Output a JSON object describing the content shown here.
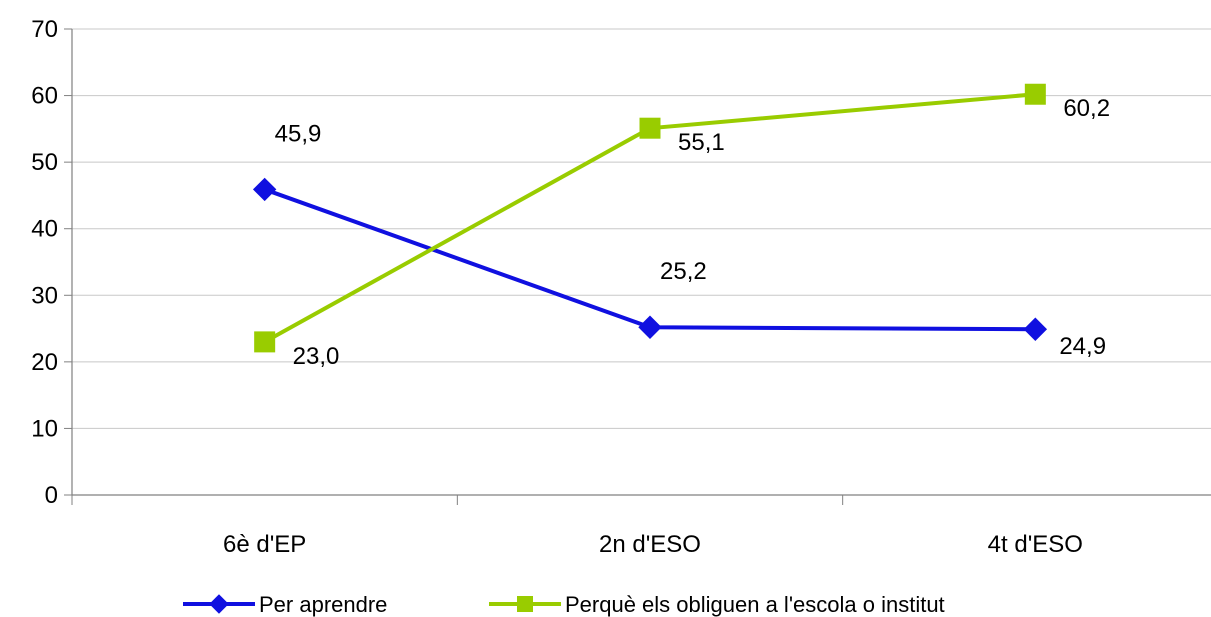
{
  "chart_data": {
    "type": "line",
    "title": "",
    "xlabel": "",
    "ylabel": "",
    "categories": [
      "6è d'EP",
      "2n d'ESO",
      "4t d'ESO"
    ],
    "ylim": [
      0,
      70
    ],
    "yticks": [
      0,
      10,
      20,
      30,
      40,
      50,
      60,
      70
    ],
    "grid": true,
    "legend_position": "bottom",
    "series": [
      {
        "name": "Per aprendre",
        "values": [
          45.9,
          25.2,
          24.9
        ],
        "labels": [
          "45,9",
          "25,2",
          "24,9"
        ],
        "color": "#1010e0",
        "marker": "diamond"
      },
      {
        "name": "Perquè els obliguen a l'escola o institut",
        "values": [
          23.0,
          55.1,
          60.2
        ],
        "labels": [
          "23,0",
          "55,1",
          "60,2"
        ],
        "color": "#99cc00",
        "marker": "square"
      }
    ]
  }
}
